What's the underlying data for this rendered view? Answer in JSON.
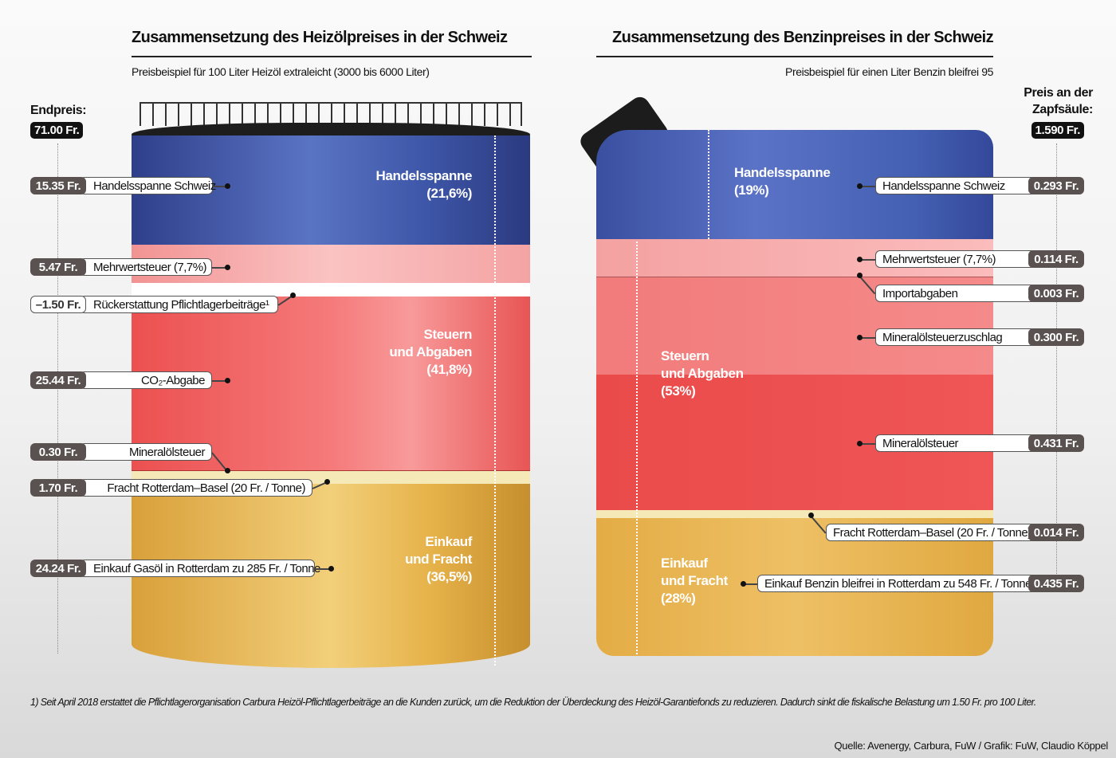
{
  "left": {
    "title": "Zusammensetzung des Heizölpreises in der Schweiz",
    "subtitle": "Preisbeispiel für 100 Liter Heizöl extraleicht (3000 bis 6000 Liter)",
    "end_label": "Endpreis:",
    "end_value": "71.00 Fr.",
    "groups": [
      {
        "text": "Handelsspanne\n(21,6%)"
      },
      {
        "text": "Steuern\nund Abgaben\n(41,8%)"
      },
      {
        "text": "Einkauf\nund Fracht\n(36,5%)"
      }
    ],
    "items": [
      {
        "value": "15.35 Fr.",
        "label": "Handelsspanne Schweiz"
      },
      {
        "value": "5.47 Fr.",
        "label": "Mehrwertsteuer (7,7%)"
      },
      {
        "value": "–1.50 Fr.",
        "label": "Rückerstattung Pflichtlagerbeiträge¹"
      },
      {
        "value": "25.44 Fr.",
        "label": "CO₂-Abgabe"
      },
      {
        "value": "0.30 Fr.",
        "label": "Mineralölsteuer"
      },
      {
        "value": "1.70 Fr.",
        "label": "Fracht Rotterdam–Basel (20 Fr. / Tonne)"
      },
      {
        "value": "24.24 Fr.",
        "label": "Einkauf Gasöl in Rotterdam zu 285 Fr. / Tonne"
      }
    ]
  },
  "right": {
    "title": "Zusammensetzung des Benzinpreises in der Schweiz",
    "subtitle": "Preisbeispiel für einen Liter Benzin bleifrei 95",
    "end_label": "Preis an der\nZapfsäule:",
    "end_value": "1.590 Fr.",
    "groups": [
      {
        "text": "Handelsspanne\n(19%)"
      },
      {
        "text": "Steuern\nund Abgaben\n(53%)"
      },
      {
        "text": "Einkauf\nund Fracht\n(28%)"
      }
    ],
    "items": [
      {
        "value": "0.293 Fr.",
        "label": "Handelsspanne Schweiz"
      },
      {
        "value": "0.114 Fr.",
        "label": "Mehrwertsteuer (7,7%)"
      },
      {
        "value": "0.003 Fr.",
        "label": "Importabgaben"
      },
      {
        "value": "0.300 Fr.",
        "label": "Mineralölsteuerzuschlag"
      },
      {
        "value": "0.431 Fr.",
        "label": "Mineralölsteuer"
      },
      {
        "value": "0.014 Fr.",
        "label": "Fracht Rotterdam–Basel (20 Fr. / Tonne)"
      },
      {
        "value": "0.435 Fr.",
        "label": "Einkauf Benzin bleifrei in Rotterdam zu 548 Fr. / Tonne"
      }
    ]
  },
  "footnote": "1) Seit April 2018 erstattet die Pflichtlagerorganisation Carbura Heizöl-Pflichtlagerbeiträge an die Kunden zurück, um die Reduktion der Überdeckung des Heizöl-Garantiefonds zu reduzieren. Dadurch sinkt die fiskalische Belastung um 1.50 Fr. pro 100 Liter.",
  "source": "Quelle: Avenergy, Carbura, FuW / Grafik: FuW, Claudio Köppel",
  "colors": {
    "handelsspanne": "#3d55a6",
    "mwst": "#f7a9a9",
    "steuern": "#ef5454",
    "fracht": "#f6e9b8",
    "einkauf": "#e8b34a"
  },
  "chart_data": [
    {
      "type": "bar",
      "title": "Zusammensetzung des Heizölpreises in der Schweiz",
      "subtitle": "Preisbeispiel für 100 Liter Heizöl extraleicht (3000 bis 6000 Liter)",
      "unit": "Fr.",
      "total": 71.0,
      "categories": [
        "Handelsspanne Schweiz",
        "Mehrwertsteuer (7,7%)",
        "Rückerstattung Pflichtlagerbeiträge¹",
        "CO₂-Abgabe",
        "Mineralölsteuer",
        "Fracht Rotterdam–Basel (20 Fr. / Tonne)",
        "Einkauf Gasöl in Rotterdam zu 285 Fr. / Tonne"
      ],
      "values": [
        15.35,
        5.47,
        -1.5,
        25.44,
        0.3,
        1.7,
        24.24
      ],
      "groups": [
        {
          "name": "Handelsspanne",
          "percent": 21.6
        },
        {
          "name": "Steuern und Abgaben",
          "percent": 41.8
        },
        {
          "name": "Einkauf und Fracht",
          "percent": 36.5
        }
      ]
    },
    {
      "type": "bar",
      "title": "Zusammensetzung des Benzinpreises in der Schweiz",
      "subtitle": "Preisbeispiel für einen Liter Benzin bleifrei 95",
      "unit": "Fr.",
      "total": 1.59,
      "categories": [
        "Handelsspanne Schweiz",
        "Mehrwertsteuer (7,7%)",
        "Importabgaben",
        "Mineralölsteuerzuschlag",
        "Mineralölsteuer",
        "Fracht Rotterdam–Basel (20 Fr. / Tonne)",
        "Einkauf Benzin bleifrei in Rotterdam zu 548 Fr. / Tonne"
      ],
      "values": [
        0.293,
        0.114,
        0.003,
        0.3,
        0.431,
        0.014,
        0.435
      ],
      "groups": [
        {
          "name": "Handelsspanne",
          "percent": 19
        },
        {
          "name": "Steuern und Abgaben",
          "percent": 53
        },
        {
          "name": "Einkauf und Fracht",
          "percent": 28
        }
      ]
    }
  ]
}
